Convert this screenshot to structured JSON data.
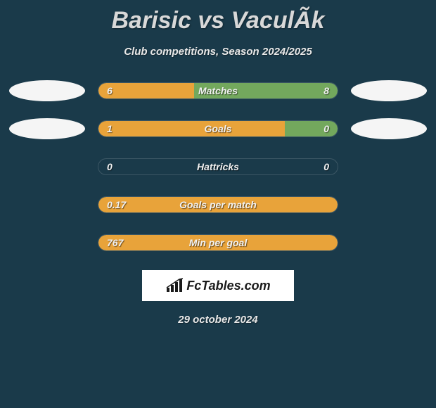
{
  "title": "Barisic vs VaculÃ­k",
  "subtitle": "Club competitions, Season 2024/2025",
  "date": "29 october 2024",
  "brand": "FcTables.com",
  "colors": {
    "background": "#1a3a4a",
    "left_fill": "#e8a33a",
    "right_fill": "#73a85d",
    "bar_empty": "#1a3a4a",
    "ellipse": "#f5f5f5",
    "text": "#e8e8e8",
    "brand_bg": "#ffffff",
    "brand_text": "#1a1a1a"
  },
  "stats": [
    {
      "label": "Matches",
      "left_value": "6",
      "right_value": "8",
      "left_pct": 40,
      "right_pct": 60,
      "show_ellipses": true
    },
    {
      "label": "Goals",
      "left_value": "1",
      "right_value": "0",
      "left_pct": 78,
      "right_pct": 22,
      "show_ellipses": true
    },
    {
      "label": "Hattricks",
      "left_value": "0",
      "right_value": "0",
      "left_pct": 0,
      "right_pct": 0,
      "show_ellipses": false
    },
    {
      "label": "Goals per match",
      "left_value": "0.17",
      "right_value": "",
      "left_pct": 100,
      "right_pct": 0,
      "show_ellipses": false
    },
    {
      "label": "Min per goal",
      "left_value": "767",
      "right_value": "",
      "left_pct": 100,
      "right_pct": 0,
      "show_ellipses": false
    }
  ]
}
